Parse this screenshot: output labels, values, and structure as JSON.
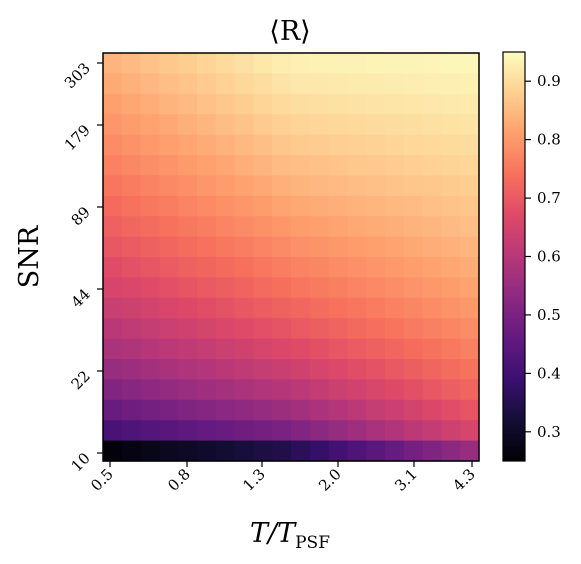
{
  "chart_data": {
    "type": "heatmap",
    "title": "⟨R⟩",
    "xlabel": {
      "main": "T/T",
      "sub": "PSF"
    },
    "ylabel": "SNR",
    "x_tick_labels": [
      "0.5",
      "0.8",
      "1.3",
      "2.0",
      "3.1",
      "4.3"
    ],
    "y_tick_labels": [
      "10",
      "22",
      "44",
      "89",
      "179",
      "303"
    ],
    "colorbar": {
      "colormap": "magma",
      "range": [
        0.25,
        0.95
      ],
      "ticks": [
        0.3,
        0.4,
        0.5,
        0.6,
        0.7,
        0.8,
        0.9
      ],
      "tick_labels": [
        "0.3",
        "0.4",
        "0.5",
        "0.6",
        "0.7",
        "0.8",
        "0.9"
      ]
    },
    "grid_shape": {
      "rows": 20,
      "cols": 20
    },
    "value_model": {
      "v_low_snr": [
        0.26,
        0.35,
        0.55
      ],
      "v_high_snr": [
        0.84,
        0.93,
        0.94
      ],
      "v_low_x_knots": [
        0,
        0.5,
        1
      ],
      "v_high_x_knots": [
        0,
        0.5,
        1
      ],
      "snr_shape_exponent": 0.45
    }
  }
}
